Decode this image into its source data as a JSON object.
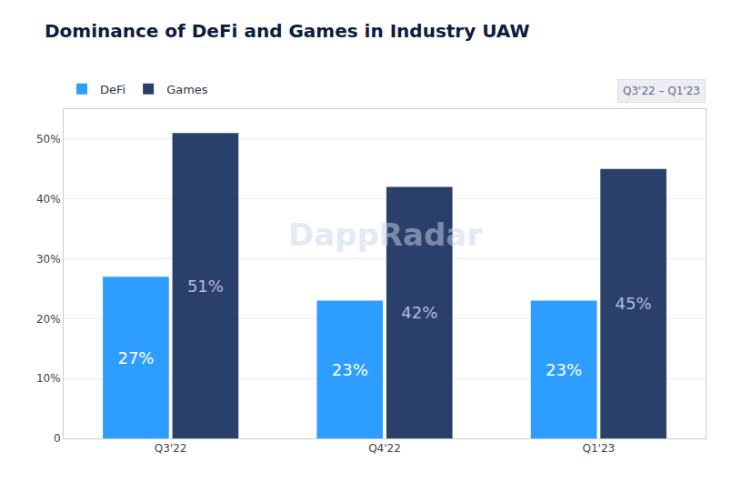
{
  "chart_data": {
    "type": "bar",
    "title": "Dominance of DeFi and Games in Industry UAW",
    "categories": [
      "Q3'22",
      "Q4'22",
      "Q1'23"
    ],
    "series": [
      {
        "name": "DeFi",
        "color": "#2D9EFF",
        "values": [
          27,
          23,
          23
        ],
        "value_labels": [
          "27%",
          "23%",
          "23%"
        ]
      },
      {
        "name": "Games",
        "color": "#2B3F6B",
        "values": [
          51,
          42,
          45
        ],
        "value_labels": [
          "51%",
          "42%",
          "45%"
        ]
      }
    ],
    "ylim": [
      0,
      55
    ],
    "yticks": [
      0,
      {
        "value": 10,
        "label": "10%"
      },
      {
        "value": 20,
        "label": "20%"
      },
      {
        "value": 30,
        "label": "30%"
      },
      {
        "value": 40,
        "label": "40%"
      },
      {
        "value": 50,
        "label": "50%"
      }
    ],
    "grid": true,
    "legend": "upper left",
    "data_labels": true,
    "annotations": [
      "Q3'22 – Q1'23",
      "DappRadar"
    ]
  }
}
